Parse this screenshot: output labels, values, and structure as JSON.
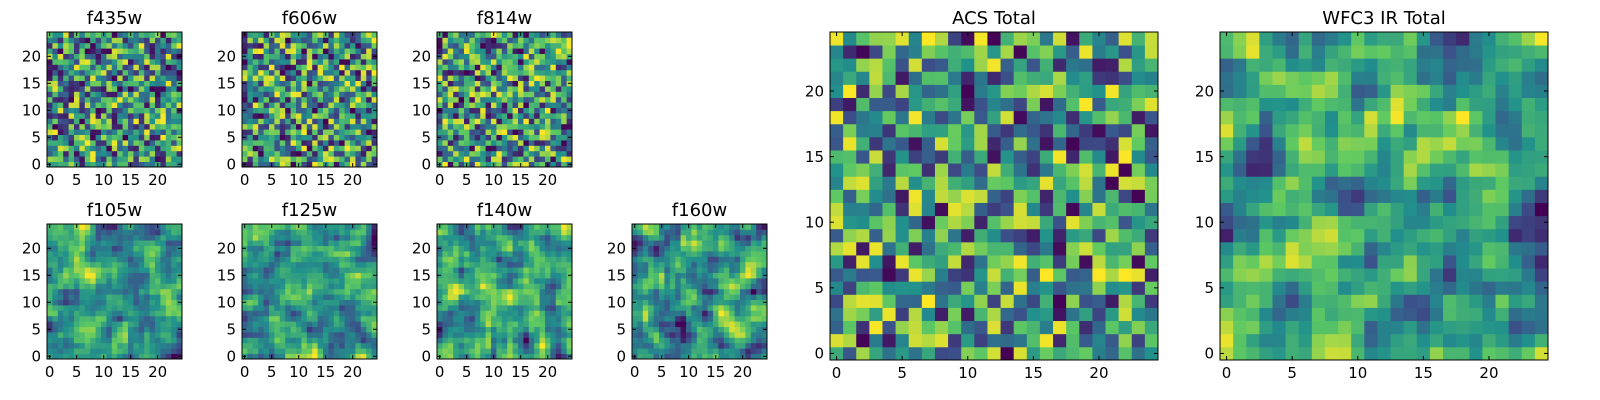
{
  "chart_data": [
    {
      "type": "heatmap",
      "title": "f435w",
      "grid_size": 25,
      "seed": 11,
      "smoothing": 0,
      "x_ticks": [
        0,
        5,
        10,
        15,
        20
      ],
      "y_ticks": [
        0,
        5,
        10,
        15,
        20
      ],
      "xlim": [
        0,
        25
      ],
      "ylim": [
        0,
        25
      ],
      "colormap": "viridis",
      "grid": false,
      "legend": "none",
      "x": [
        0,
        1,
        2,
        3,
        4,
        5,
        6,
        7,
        8,
        9,
        10,
        11,
        12,
        13,
        14,
        15,
        16,
        17,
        18,
        19,
        20,
        21,
        22,
        23,
        24
      ],
      "y": [
        0,
        1,
        2,
        3,
        4,
        5,
        6,
        7,
        8,
        9,
        10,
        11,
        12,
        13,
        14,
        15,
        16,
        17,
        18,
        19,
        20,
        21,
        22,
        23,
        24
      ]
    },
    {
      "type": "heatmap",
      "title": "f606w",
      "grid_size": 25,
      "seed": 23,
      "smoothing": 0,
      "x_ticks": [
        0,
        5,
        10,
        15,
        20
      ],
      "y_ticks": [
        0,
        5,
        10,
        15,
        20
      ],
      "xlim": [
        0,
        25
      ],
      "ylim": [
        0,
        25
      ],
      "colormap": "viridis",
      "grid": false,
      "legend": "none",
      "x": [
        0,
        1,
        2,
        3,
        4,
        5,
        6,
        7,
        8,
        9,
        10,
        11,
        12,
        13,
        14,
        15,
        16,
        17,
        18,
        19,
        20,
        21,
        22,
        23,
        24
      ],
      "y": [
        0,
        1,
        2,
        3,
        4,
        5,
        6,
        7,
        8,
        9,
        10,
        11,
        12,
        13,
        14,
        15,
        16,
        17,
        18,
        19,
        20,
        21,
        22,
        23,
        24
      ]
    },
    {
      "type": "heatmap",
      "title": "f814w",
      "grid_size": 25,
      "seed": 37,
      "smoothing": 0,
      "x_ticks": [
        0,
        5,
        10,
        15,
        20
      ],
      "y_ticks": [
        0,
        5,
        10,
        15,
        20
      ],
      "xlim": [
        0,
        25
      ],
      "ylim": [
        0,
        25
      ],
      "colormap": "viridis",
      "grid": false,
      "legend": "none",
      "x": [
        0,
        1,
        2,
        3,
        4,
        5,
        6,
        7,
        8,
        9,
        10,
        11,
        12,
        13,
        14,
        15,
        16,
        17,
        18,
        19,
        20,
        21,
        22,
        23,
        24
      ],
      "y": [
        0,
        1,
        2,
        3,
        4,
        5,
        6,
        7,
        8,
        9,
        10,
        11,
        12,
        13,
        14,
        15,
        16,
        17,
        18,
        19,
        20,
        21,
        22,
        23,
        24
      ]
    },
    {
      "type": "heatmap",
      "title": "f105w",
      "grid_size": 25,
      "seed": 41,
      "smoothing": 1,
      "x_ticks": [
        0,
        5,
        10,
        15,
        20
      ],
      "y_ticks": [
        0,
        5,
        10,
        15,
        20
      ],
      "xlim": [
        0,
        25
      ],
      "ylim": [
        0,
        25
      ],
      "colormap": "viridis",
      "grid": false,
      "legend": "none",
      "x": [
        0,
        1,
        2,
        3,
        4,
        5,
        6,
        7,
        8,
        9,
        10,
        11,
        12,
        13,
        14,
        15,
        16,
        17,
        18,
        19,
        20,
        21,
        22,
        23,
        24
      ],
      "y": [
        0,
        1,
        2,
        3,
        4,
        5,
        6,
        7,
        8,
        9,
        10,
        11,
        12,
        13,
        14,
        15,
        16,
        17,
        18,
        19,
        20,
        21,
        22,
        23,
        24
      ]
    },
    {
      "type": "heatmap",
      "title": "f125w",
      "grid_size": 25,
      "seed": 53,
      "smoothing": 1,
      "x_ticks": [
        0,
        5,
        10,
        15,
        20
      ],
      "y_ticks": [
        0,
        5,
        10,
        15,
        20
      ],
      "xlim": [
        0,
        25
      ],
      "ylim": [
        0,
        25
      ],
      "colormap": "viridis",
      "grid": false,
      "legend": "none",
      "x": [
        0,
        1,
        2,
        3,
        4,
        5,
        6,
        7,
        8,
        9,
        10,
        11,
        12,
        13,
        14,
        15,
        16,
        17,
        18,
        19,
        20,
        21,
        22,
        23,
        24
      ],
      "y": [
        0,
        1,
        2,
        3,
        4,
        5,
        6,
        7,
        8,
        9,
        10,
        11,
        12,
        13,
        14,
        15,
        16,
        17,
        18,
        19,
        20,
        21,
        22,
        23,
        24
      ]
    },
    {
      "type": "heatmap",
      "title": "f140w",
      "grid_size": 25,
      "seed": 67,
      "smoothing": 1,
      "x_ticks": [
        0,
        5,
        10,
        15,
        20
      ],
      "y_ticks": [
        0,
        5,
        10,
        15,
        20
      ],
      "xlim": [
        0,
        25
      ],
      "ylim": [
        0,
        25
      ],
      "colormap": "viridis",
      "grid": false,
      "legend": "none",
      "x": [
        0,
        1,
        2,
        3,
        4,
        5,
        6,
        7,
        8,
        9,
        10,
        11,
        12,
        13,
        14,
        15,
        16,
        17,
        18,
        19,
        20,
        21,
        22,
        23,
        24
      ],
      "y": [
        0,
        1,
        2,
        3,
        4,
        5,
        6,
        7,
        8,
        9,
        10,
        11,
        12,
        13,
        14,
        15,
        16,
        17,
        18,
        19,
        20,
        21,
        22,
        23,
        24
      ]
    },
    {
      "type": "heatmap",
      "title": "f160w",
      "grid_size": 25,
      "seed": 79,
      "smoothing": 1,
      "x_ticks": [
        0,
        5,
        10,
        15,
        20
      ],
      "y_ticks": [
        0,
        5,
        10,
        15,
        20
      ],
      "xlim": [
        0,
        25
      ],
      "ylim": [
        0,
        25
      ],
      "colormap": "viridis",
      "grid": false,
      "legend": "none",
      "x": [
        0,
        1,
        2,
        3,
        4,
        5,
        6,
        7,
        8,
        9,
        10,
        11,
        12,
        13,
        14,
        15,
        16,
        17,
        18,
        19,
        20,
        21,
        22,
        23,
        24
      ],
      "y": [
        0,
        1,
        2,
        3,
        4,
        5,
        6,
        7,
        8,
        9,
        10,
        11,
        12,
        13,
        14,
        15,
        16,
        17,
        18,
        19,
        20,
        21,
        22,
        23,
        24
      ]
    },
    {
      "type": "heatmap",
      "title": "ACS Total",
      "grid_size": 25,
      "seed": 97,
      "smoothing": 0,
      "bias": 0.62,
      "x_ticks": [
        0,
        5,
        10,
        15,
        20
      ],
      "y_ticks": [
        0,
        5,
        10,
        15,
        20
      ],
      "xlim": [
        0,
        25
      ],
      "ylim": [
        0,
        25
      ],
      "colormap": "viridis",
      "grid": false,
      "legend": "none",
      "x": [
        0,
        1,
        2,
        3,
        4,
        5,
        6,
        7,
        8,
        9,
        10,
        11,
        12,
        13,
        14,
        15,
        16,
        17,
        18,
        19,
        20,
        21,
        22,
        23,
        24
      ],
      "y": [
        0,
        1,
        2,
        3,
        4,
        5,
        6,
        7,
        8,
        9,
        10,
        11,
        12,
        13,
        14,
        15,
        16,
        17,
        18,
        19,
        20,
        21,
        22,
        23,
        24
      ]
    },
    {
      "type": "heatmap",
      "title": "WFC3 IR Total",
      "grid_size": 25,
      "seed": 113,
      "smoothing": 1,
      "x_ticks": [
        0,
        5,
        10,
        15,
        20
      ],
      "y_ticks": [
        0,
        5,
        10,
        15,
        20
      ],
      "xlim": [
        0,
        25
      ],
      "ylim": [
        0,
        25
      ],
      "colormap": "viridis",
      "grid": false,
      "legend": "none",
      "x": [
        0,
        1,
        2,
        3,
        4,
        5,
        6,
        7,
        8,
        9,
        10,
        11,
        12,
        13,
        14,
        15,
        16,
        17,
        18,
        19,
        20,
        21,
        22,
        23,
        24
      ],
      "y": [
        0,
        1,
        2,
        3,
        4,
        5,
        6,
        7,
        8,
        9,
        10,
        11,
        12,
        13,
        14,
        15,
        16,
        17,
        18,
        19,
        20,
        21,
        22,
        23,
        24
      ]
    }
  ],
  "colors": {
    "viridis_stops": [
      "#440154",
      "#3b528b",
      "#21918c",
      "#5ec962",
      "#fde725"
    ],
    "axes_frame": "#000000",
    "background": "#ffffff"
  }
}
